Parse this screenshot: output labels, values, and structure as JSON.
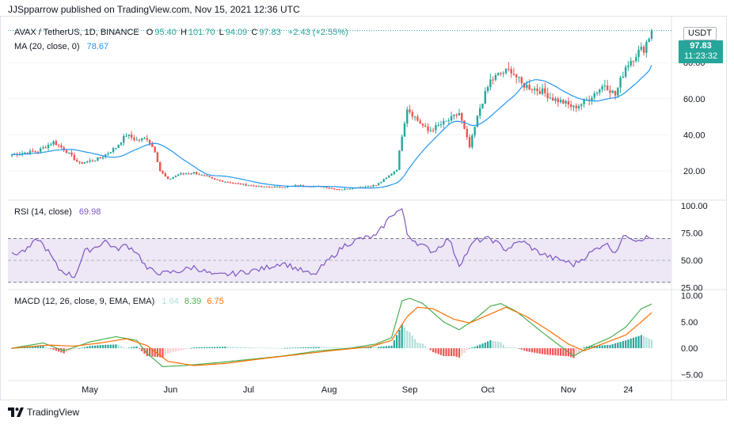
{
  "header": {
    "publisher_line": "JJSpparrow published on TradingView.com, Nov 15, 2021 12:36 UTC"
  },
  "footer": {
    "brand": "TradingView"
  },
  "colors": {
    "up": "#26a69a",
    "down": "#ef5350",
    "ma": "#2196f3",
    "rsi": "#7e57c2",
    "rsi_band": "#ede7f6",
    "macd": "#4caf50",
    "signal": "#ff6d00",
    "hist_up_strong": "#26a69a",
    "hist_up_weak": "#b2dfdb",
    "hist_down_strong": "#ef5350",
    "hist_down_weak": "#ffcdd2",
    "grid": "#f0f3fa",
    "axis_text": "#131722",
    "badge": "#26a69a"
  },
  "price_legend": {
    "symbol": "AVAX / TetherUS, 1D, BINANCE",
    "o_label": "O",
    "o": "95.40",
    "h_label": "H",
    "h": "101.70",
    "l_label": "L",
    "l": "94.09",
    "c_label": "C",
    "c": "97.83",
    "change": "+2.43 (+2.55%)"
  },
  "ma_legend": {
    "label": "MA (20, close, 0)",
    "value": "78.67"
  },
  "rsi_legend": {
    "label": "RSI (14, close)",
    "value": "69.98"
  },
  "macd_legend": {
    "label": "MACD (12, 26, close, 9, EMA, EMA)",
    "hist": "1.64",
    "macd": "8.39",
    "signal": "6.75"
  },
  "price_axis": {
    "currency": "USDT",
    "last_price": "97.83",
    "countdown": "11:23:32"
  },
  "chart_data": [
    {
      "type": "candlestick",
      "title": "AVAX / TetherUS, 1D, BINANCE",
      "y_ticks": [
        20,
        40,
        60,
        80
      ],
      "ylim": [
        5,
        106
      ],
      "x_tick_labels": [
        "May",
        "Jun",
        "Jul",
        "Aug",
        "Sep",
        "Oct",
        "Nov",
        "24"
      ],
      "grid": true,
      "series": [
        {
          "name": "AVAX / TetherUS",
          "kind": "close",
          "keypoints": [
            [
              0,
              29
            ],
            [
              10,
              31
            ],
            [
              16,
              36
            ],
            [
              20,
              32
            ],
            [
              26,
              24
            ],
            [
              34,
              27
            ],
            [
              40,
              33
            ],
            [
              44,
              40
            ],
            [
              48,
              37
            ],
            [
              52,
              38
            ],
            [
              55,
              31
            ],
            [
              57,
              20
            ],
            [
              60,
              15
            ],
            [
              64,
              18
            ],
            [
              70,
              19
            ],
            [
              78,
              15
            ],
            [
              86,
              13
            ],
            [
              96,
              11
            ],
            [
              105,
              11
            ],
            [
              110,
              12
            ],
            [
              120,
              11
            ],
            [
              126,
              9.5
            ],
            [
              134,
              11
            ],
            [
              140,
              12
            ],
            [
              144,
              16
            ],
            [
              148,
              21
            ],
            [
              150,
              40
            ],
            [
              152,
              55
            ],
            [
              156,
              48
            ],
            [
              160,
              42
            ],
            [
              164,
              45
            ],
            [
              168,
              48
            ],
            [
              172,
              52
            ],
            [
              176,
              33
            ],
            [
              180,
              55
            ],
            [
              184,
              70
            ],
            [
              188,
              74
            ],
            [
              192,
              76
            ],
            [
              196,
              68
            ],
            [
              200,
              66
            ],
            [
              204,
              64
            ],
            [
              208,
              60
            ],
            [
              212,
              58
            ],
            [
              216,
              55
            ],
            [
              220,
              58
            ],
            [
              224,
              63
            ],
            [
              228,
              68
            ],
            [
              232,
              62
            ],
            [
              236,
              78
            ],
            [
              240,
              85
            ],
            [
              243,
              88
            ],
            [
              246,
              97.83
            ]
          ]
        },
        {
          "name": "MA (20, close, 0)",
          "last": 78.67
        }
      ]
    },
    {
      "type": "line",
      "title": "RSI (14, close)",
      "y_ticks": [
        25,
        50,
        75,
        100
      ],
      "ylim": [
        24,
        103
      ],
      "band": [
        30,
        70
      ],
      "last": 69.98,
      "keypoints": [
        [
          0,
          55
        ],
        [
          6,
          60
        ],
        [
          10,
          70
        ],
        [
          14,
          58
        ],
        [
          18,
          42
        ],
        [
          24,
          35
        ],
        [
          28,
          58
        ],
        [
          32,
          62
        ],
        [
          36,
          68
        ],
        [
          40,
          60
        ],
        [
          44,
          64
        ],
        [
          48,
          58
        ],
        [
          52,
          42
        ],
        [
          58,
          38
        ],
        [
          64,
          40
        ],
        [
          70,
          44
        ],
        [
          78,
          36
        ],
        [
          86,
          38
        ],
        [
          96,
          42
        ],
        [
          104,
          48
        ],
        [
          110,
          42
        ],
        [
          116,
          36
        ],
        [
          120,
          46
        ],
        [
          128,
          64
        ],
        [
          134,
          70
        ],
        [
          140,
          72
        ],
        [
          146,
          92
        ],
        [
          150,
          97
        ],
        [
          152,
          74
        ],
        [
          156,
          66
        ],
        [
          162,
          58
        ],
        [
          168,
          70
        ],
        [
          172,
          46
        ],
        [
          178,
          68
        ],
        [
          184,
          70
        ],
        [
          190,
          60
        ],
        [
          196,
          68
        ],
        [
          202,
          58
        ],
        [
          208,
          52
        ],
        [
          212,
          50
        ],
        [
          216,
          46
        ],
        [
          222,
          56
        ],
        [
          228,
          66
        ],
        [
          232,
          58
        ],
        [
          236,
          74
        ],
        [
          240,
          69
        ],
        [
          244,
          71
        ],
        [
          246,
          69.98
        ]
      ]
    },
    {
      "type": "line",
      "title": "MACD (12, 26, close, 9, EMA, EMA)",
      "y_ticks": [
        -5,
        0,
        5,
        10
      ],
      "ylim": [
        -6,
        11
      ],
      "last_hist": 1.64,
      "last_macd": 8.39,
      "last_signal": 6.75,
      "macd_keypoints": [
        [
          0,
          0
        ],
        [
          12,
          1
        ],
        [
          20,
          -0.5
        ],
        [
          30,
          1.2
        ],
        [
          40,
          2.2
        ],
        [
          48,
          1.5
        ],
        [
          52,
          -1
        ],
        [
          58,
          -3.5
        ],
        [
          66,
          -3.3
        ],
        [
          78,
          -2.8
        ],
        [
          90,
          -2.2
        ],
        [
          104,
          -1.5
        ],
        [
          118,
          -0.5
        ],
        [
          130,
          0
        ],
        [
          140,
          0.8
        ],
        [
          146,
          2
        ],
        [
          150,
          9
        ],
        [
          153,
          9.5
        ],
        [
          158,
          8.5
        ],
        [
          166,
          5
        ],
        [
          172,
          3.5
        ],
        [
          178,
          5.5
        ],
        [
          184,
          8
        ],
        [
          188,
          8.5
        ],
        [
          194,
          7
        ],
        [
          204,
          3
        ],
        [
          212,
          0
        ],
        [
          216,
          -1.5
        ],
        [
          222,
          0.3
        ],
        [
          230,
          2
        ],
        [
          236,
          4
        ],
        [
          242,
          7.5
        ],
        [
          246,
          8.39
        ]
      ],
      "signal_keypoints": [
        [
          0,
          0
        ],
        [
          14,
          0.6
        ],
        [
          24,
          0.4
        ],
        [
          34,
          1
        ],
        [
          44,
          1.8
        ],
        [
          52,
          0.5
        ],
        [
          60,
          -2.5
        ],
        [
          70,
          -3.3
        ],
        [
          82,
          -2.9
        ],
        [
          96,
          -2
        ],
        [
          110,
          -1.2
        ],
        [
          124,
          -0.4
        ],
        [
          138,
          0.3
        ],
        [
          146,
          1.5
        ],
        [
          152,
          6
        ],
        [
          156,
          7.8
        ],
        [
          162,
          7.5
        ],
        [
          170,
          5.5
        ],
        [
          176,
          4.8
        ],
        [
          184,
          6.5
        ],
        [
          190,
          7.8
        ],
        [
          198,
          6
        ],
        [
          206,
          3.5
        ],
        [
          214,
          0.8
        ],
        [
          220,
          -0.5
        ],
        [
          228,
          1
        ],
        [
          236,
          2.5
        ],
        [
          242,
          5
        ],
        [
          246,
          6.75
        ]
      ]
    }
  ]
}
